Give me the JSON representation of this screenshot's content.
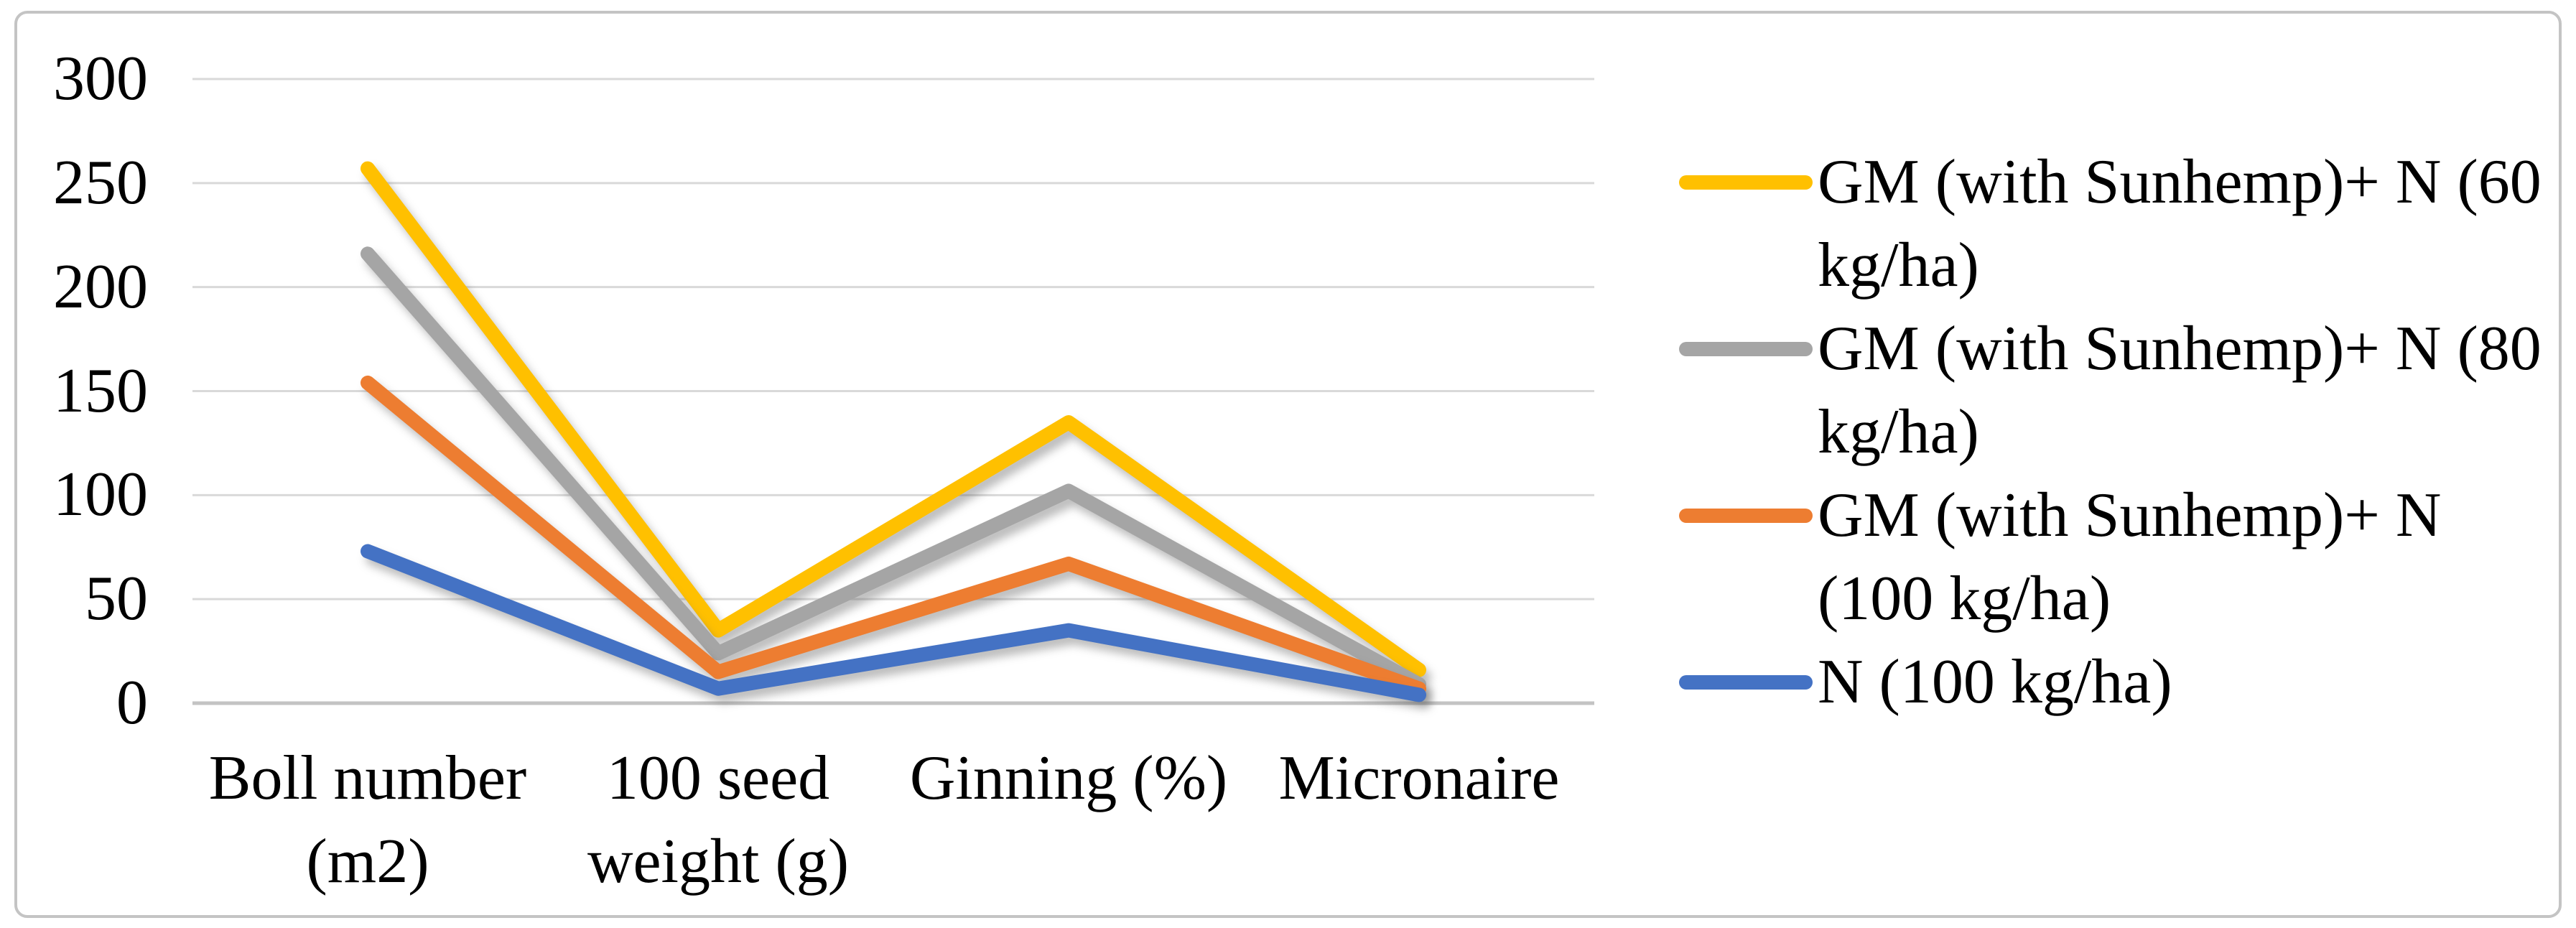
{
  "figure": {
    "background": "#FFFFFF",
    "frame_border_color": "#C4C4C4"
  },
  "colors": {
    "gridline": "#D9D9D9",
    "axis_line": "#C3C3C3",
    "text": "#000000",
    "series_yellow": "#FFC000",
    "series_gray": "#A5A5A5",
    "series_orange": "#ED7D31",
    "series_blue": "#4472C4"
  },
  "chart_data": {
    "type": "line",
    "title": "",
    "xlabel": "",
    "ylabel": "",
    "grid": "horizontal-on",
    "legend_position": "right",
    "categories": [
      "Boll number (m2)",
      "100 seed weight (g)",
      "Ginning (%)",
      "Micronaire"
    ],
    "category_label_lines": [
      [
        "Boll number",
        "(m2)"
      ],
      [
        "100 seed",
        "weight (g)"
      ],
      [
        "Ginning (%)"
      ],
      [
        "Micronaire"
      ]
    ],
    "series": [
      {
        "name": "GM (with Sunhemp)+ N (60 kg/ha)",
        "color": "#FFC000",
        "values": [
          257,
          35,
          135,
          16
        ]
      },
      {
        "name": "GM (with Sunhemp)+ N (80 kg/ha)",
        "color": "#A5A5A5",
        "values": [
          216,
          24,
          102,
          9
        ]
      },
      {
        "name": "GM (with Sunhemp)+ N (100 kg/ha)",
        "color": "#ED7D31",
        "values": [
          154,
          15,
          67,
          7
        ]
      },
      {
        "name": "N (100 kg/ha)",
        "color": "#4472C4",
        "values": [
          73,
          7,
          35,
          4
        ]
      }
    ],
    "ylim": [
      0,
      300
    ],
    "ytick_interval": 50,
    "yticks": [
      "0",
      "50",
      "100",
      "150",
      "200",
      "250",
      "300"
    ],
    "legend_entries": [
      {
        "lines": [
          "GM (with Sunhemp)+ N (60",
          "kg/ha)"
        ],
        "color": "#FFC000"
      },
      {
        "lines": [
          "GM (with Sunhemp)+ N (80",
          "kg/ha)"
        ],
        "color": "#A5A5A5"
      },
      {
        "lines": [
          "GM (with Sunhemp)+ N",
          "(100 kg/ha)"
        ],
        "color": "#ED7D31"
      },
      {
        "lines": [
          "N (100 kg/ha)"
        ],
        "color": "#4472C4"
      }
    ]
  }
}
